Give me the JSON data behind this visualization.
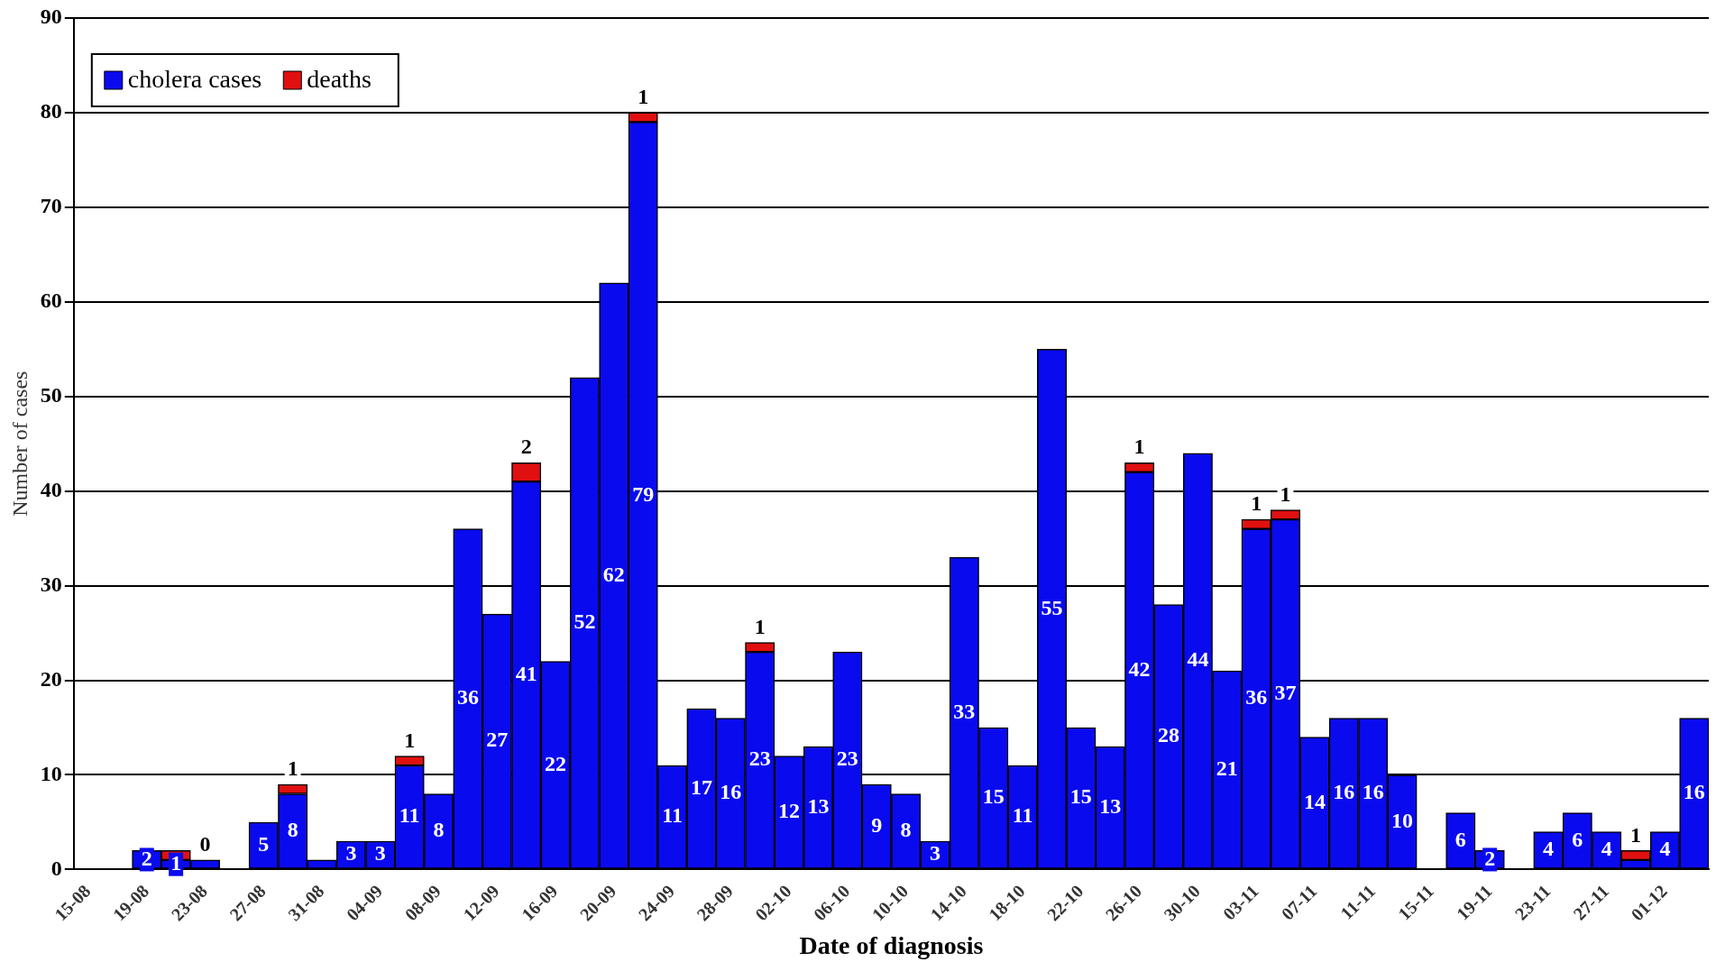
{
  "chart_data": {
    "type": "bar",
    "stacked": true,
    "xlabel": "Date of diagnosis",
    "ylabel": "Number of cases",
    "categories": [
      "15-08",
      null,
      "19-08",
      null,
      "23-08",
      null,
      "27-08",
      null,
      "31-08",
      null,
      "04-09",
      null,
      "08-09",
      null,
      "12-09",
      null,
      "16-09",
      null,
      "20-09",
      null,
      "24-09",
      null,
      "28-09",
      null,
      "02-10",
      null,
      "06-10",
      null,
      "10-10",
      null,
      "14-10",
      null,
      "18-10",
      null,
      "22-10",
      null,
      "26-10",
      null,
      "30-10",
      null,
      "03-11",
      null,
      "07-11",
      null,
      "11-11",
      null,
      "15-11",
      null,
      "19-11",
      null,
      "23-11",
      null,
      "27-11",
      null,
      "01-12",
      null
    ],
    "series": [
      {
        "name": "cholera cases",
        "color": "#0a0aef",
        "values": [
          null,
          null,
          2,
          1,
          1,
          null,
          5,
          8,
          1,
          3,
          3,
          11,
          8,
          36,
          27,
          41,
          22,
          52,
          62,
          79,
          11,
          17,
          16,
          23,
          12,
          13,
          23,
          9,
          8,
          3,
          33,
          15,
          11,
          55,
          15,
          13,
          42,
          28,
          44,
          21,
          36,
          37,
          14,
          16,
          16,
          10,
          null,
          6,
          2,
          null,
          4,
          6,
          4,
          1,
          4,
          16
        ],
        "value_labels": [
          null,
          null,
          "2",
          "1",
          null,
          null,
          "5",
          "8",
          null,
          "3",
          "3",
          "11",
          "8",
          "36",
          "27",
          "41",
          "22",
          "52",
          "62",
          "79",
          "11",
          "17",
          "16",
          "23",
          "12",
          "13",
          "23",
          "9",
          "8",
          "3",
          "33",
          "15",
          "11",
          "55",
          "15",
          "13",
          "42",
          "28",
          "44",
          "21",
          "36",
          "37",
          "14",
          "16",
          "16",
          "10",
          null,
          "6",
          "2",
          null,
          "4",
          "6",
          "4",
          null,
          "4",
          "16"
        ]
      },
      {
        "name": "deaths",
        "color": "#e01010",
        "values": [
          null,
          null,
          0,
          1,
          0,
          null,
          0,
          1,
          0,
          0,
          0,
          1,
          0,
          0,
          0,
          2,
          0,
          0,
          0,
          1,
          0,
          0,
          0,
          1,
          0,
          0,
          0,
          0,
          0,
          0,
          0,
          0,
          0,
          0,
          0,
          0,
          1,
          0,
          0,
          0,
          1,
          1,
          0,
          0,
          0,
          0,
          null,
          0,
          0,
          null,
          0,
          0,
          0,
          1,
          0,
          0
        ],
        "value_labels": [
          null,
          null,
          null,
          null,
          "0",
          null,
          null,
          "1",
          null,
          null,
          null,
          "1",
          null,
          null,
          null,
          "2",
          null,
          null,
          null,
          "1",
          null,
          null,
          null,
          "1",
          null,
          null,
          null,
          null,
          null,
          null,
          null,
          null,
          null,
          null,
          null,
          null,
          "1",
          null,
          null,
          null,
          "1",
          "1",
          null,
          null,
          null,
          null,
          null,
          null,
          null,
          null,
          null,
          null,
          null,
          "1",
          null,
          null
        ]
      }
    ],
    "ylim": [
      0,
      90
    ],
    "yticks": [
      0,
      10,
      20,
      30,
      40,
      50,
      60,
      70,
      80,
      90
    ],
    "grid": "y",
    "legend": "top left"
  }
}
